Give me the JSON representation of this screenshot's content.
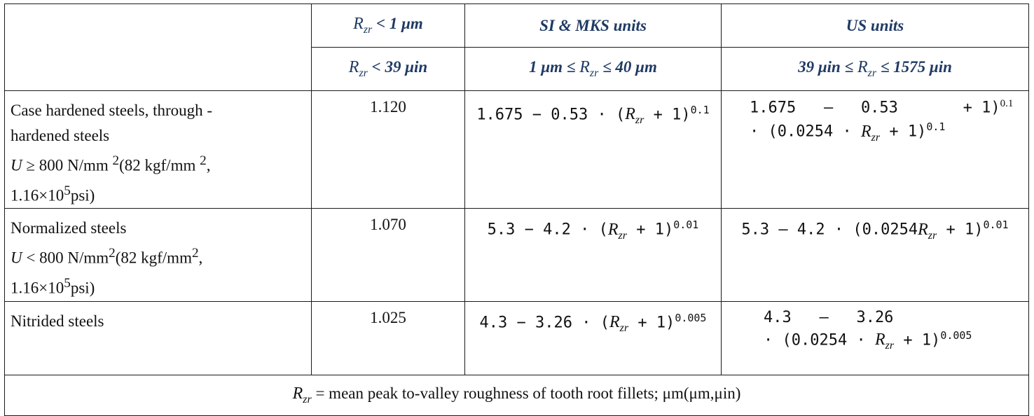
{
  "header": {
    "col1_row1_prefix": "R",
    "col1_row1_sub": "zr",
    "col1_row1_rest": " < 1 μm",
    "col2_row1": "SI & MKS units",
    "col3_row1": "US units",
    "col1_row2_prefix": "R",
    "col1_row2_sub": "zr",
    "col1_row2_rest": " < 39 μin",
    "col2_row2_a": "1 μm ≤ ",
    "col2_row2_r": "R",
    "col2_row2_sub": "zr",
    "col2_row2_b": " ≤ 40 μm",
    "col3_row2_a": "39 μin ≤ ",
    "col3_row2_r": "R",
    "col3_row2_sub": "zr",
    "col3_row2_b": " ≤ 1575 μin"
  },
  "rows": [
    {
      "material_l1": "Case hardened steels, through -",
      "material_l2": "hardened steels",
      "material_l3_u": "U",
      "material_l3": " ≥ 800 N/mm ",
      "material_l3_sup": "2",
      "material_l3_b": "(82 kgf/mm ",
      "material_l3_sup2": "2",
      "material_l3_c": ",",
      "material_l4_a": "1.16×10",
      "material_l4_sup": "5",
      "material_l4_b": "psi)",
      "value": "1.120",
      "si_a": "1.675 − 0.53 · (",
      "si_r": "R",
      "si_sub": "zr",
      "si_b": " + 1)",
      "si_exp": "0.1",
      "us_l1": "1.675   –   0.53       + 1)",
      "us_l1_exp": "0.1",
      "us_l2_a": "· (0.0254 · ",
      "us_l2_r": "R",
      "us_l2_sub": "zr",
      "us_l2_b": " + 1)",
      "us_l2_exp": "0.1"
    },
    {
      "material_l1": "Normalized steels",
      "material_l2_u": "U",
      "material_l2": " < 800 N/mm",
      "material_l2_sup": "2",
      "material_l2_b": "(82 kgf/mm",
      "material_l2_sup2": "2",
      "material_l2_c": ",",
      "material_l3_a": "1.16×10",
      "material_l3_sup": "5",
      "material_l3_b": "psi)",
      "value": "1.070",
      "si_a": "5.3 − 4.2 · (",
      "si_r": "R",
      "si_sub": "zr",
      "si_b": " + 1)",
      "si_exp": "0.01",
      "us_a": "5.3 – 4.2 · (0.0254",
      "us_r": "R",
      "us_sub": "zr",
      "us_b": " + 1)",
      "us_exp": "0.01"
    },
    {
      "material_l1": "Nitrided steels",
      "value": "1.025",
      "si_a": "4.3 − 3.26 · (",
      "si_r": "R",
      "si_sub": "zr",
      "si_b": " + 1)",
      "si_exp": "0.005",
      "us_l1": "4.3   –   3.26",
      "us_l2_a": "· (0.0254 · ",
      "us_l2_r": "R",
      "us_l2_sub": "zr",
      "us_l2_b": " + 1)",
      "us_l2_exp": "0.005"
    }
  ],
  "footer": {
    "r": "R",
    "sub": "zr",
    "text": " = mean peak to-valley roughness of tooth root fillets; μm(μm,μin)"
  }
}
